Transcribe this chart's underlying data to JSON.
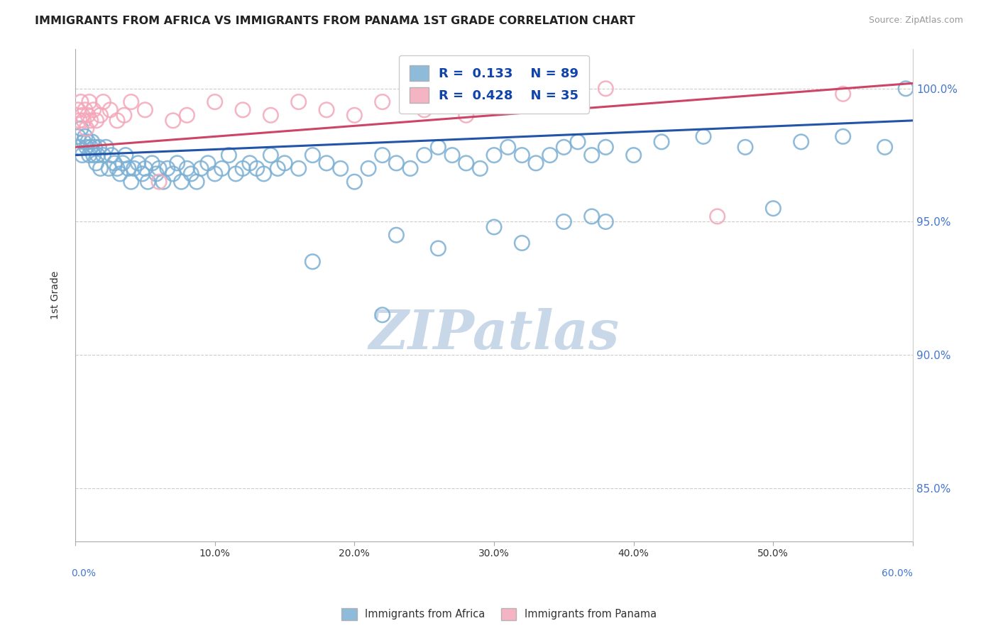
{
  "title": "IMMIGRANTS FROM AFRICA VS IMMIGRANTS FROM PANAMA 1ST GRADE CORRELATION CHART",
  "source": "Source: ZipAtlas.com",
  "ylabel": "1st Grade",
  "legend_label_blue": "Immigrants from Africa",
  "legend_label_pink": "Immigrants from Panama",
  "R_blue": 0.133,
  "N_blue": 89,
  "R_pink": 0.428,
  "N_pink": 35,
  "x_min": 0.0,
  "x_max": 60.0,
  "y_min": 83.0,
  "y_max": 101.5,
  "yticks": [
    85.0,
    90.0,
    95.0,
    100.0
  ],
  "ytick_labels": [
    "85.0%",
    "90.0%",
    "95.0%",
    "100.0%"
  ],
  "xticks": [
    0.0,
    10.0,
    20.0,
    30.0,
    40.0,
    50.0,
    60.0
  ],
  "xtick_labels": [
    "0.0%",
    "10.0%",
    "20.0%",
    "30.0%",
    "40.0%",
    "50.0%",
    "60.0%"
  ],
  "blue_color": "#7bafd4",
  "pink_color": "#f4a7b9",
  "blue_line_color": "#2255aa",
  "pink_line_color": "#cc4466",
  "watermark_color": "#c8d8e8",
  "blue_points_x": [
    0.2,
    0.3,
    0.4,
    0.5,
    0.6,
    0.7,
    0.8,
    0.9,
    1.0,
    1.1,
    1.2,
    1.3,
    1.4,
    1.5,
    1.6,
    1.7,
    1.8,
    2.0,
    2.2,
    2.4,
    2.6,
    2.8,
    3.0,
    3.2,
    3.4,
    3.6,
    3.8,
    4.0,
    4.2,
    4.5,
    4.8,
    5.0,
    5.2,
    5.5,
    5.8,
    6.0,
    6.3,
    6.6,
    7.0,
    7.3,
    7.6,
    8.0,
    8.3,
    8.7,
    9.0,
    9.5,
    10.0,
    10.5,
    11.0,
    11.5,
    12.0,
    12.5,
    13.0,
    13.5,
    14.0,
    14.5,
    15.0,
    16.0,
    17.0,
    18.0,
    19.0,
    20.0,
    21.0,
    22.0,
    23.0,
    24.0,
    25.0,
    26.0,
    27.0,
    28.0,
    29.0,
    30.0,
    31.0,
    32.0,
    33.0,
    34.0,
    35.0,
    36.0,
    37.0,
    38.0,
    40.0,
    42.0,
    45.0,
    48.0,
    50.0,
    52.0,
    55.0,
    58.0,
    59.5
  ],
  "blue_points_y": [
    98.2,
    97.8,
    98.5,
    97.5,
    98.0,
    98.2,
    97.8,
    98.0,
    97.5,
    97.8,
    98.0,
    97.5,
    97.8,
    97.2,
    97.5,
    97.8,
    97.0,
    97.5,
    97.8,
    97.0,
    97.5,
    97.2,
    97.0,
    96.8,
    97.2,
    97.5,
    97.0,
    96.5,
    97.0,
    97.2,
    96.8,
    97.0,
    96.5,
    97.2,
    96.8,
    97.0,
    96.5,
    97.0,
    96.8,
    97.2,
    96.5,
    97.0,
    96.8,
    96.5,
    97.0,
    97.2,
    96.8,
    97.0,
    97.5,
    96.8,
    97.0,
    97.2,
    97.0,
    96.8,
    97.5,
    97.0,
    97.2,
    97.0,
    97.5,
    97.2,
    97.0,
    96.5,
    97.0,
    97.5,
    97.2,
    97.0,
    97.5,
    97.8,
    97.5,
    97.2,
    97.0,
    97.5,
    97.8,
    97.5,
    97.2,
    97.5,
    97.8,
    98.0,
    97.5,
    97.8,
    97.5,
    98.0,
    98.2,
    97.8,
    95.5,
    98.0,
    98.2,
    97.8,
    100.0
  ],
  "blue_outlier_x": [
    17.0,
    23.0,
    26.0,
    30.0,
    32.0,
    35.0,
    37.0,
    38.0,
    22.0
  ],
  "blue_outlier_y": [
    93.5,
    94.5,
    94.0,
    94.8,
    94.2,
    95.0,
    95.2,
    95.0,
    91.5
  ],
  "pink_points_x": [
    0.2,
    0.3,
    0.4,
    0.5,
    0.6,
    0.7,
    0.8,
    0.9,
    1.0,
    1.1,
    1.3,
    1.5,
    1.8,
    2.0,
    2.5,
    3.0,
    3.5,
    4.0,
    5.0,
    6.0,
    7.0,
    8.0,
    10.0,
    12.0,
    14.0,
    16.0,
    18.0,
    20.0,
    22.0,
    25.0,
    28.0,
    32.0,
    38.0,
    46.0,
    55.0
  ],
  "pink_points_y": [
    99.2,
    98.8,
    99.5,
    99.0,
    98.8,
    99.2,
    98.5,
    99.0,
    99.5,
    98.8,
    99.2,
    98.8,
    99.0,
    99.5,
    99.2,
    98.8,
    99.0,
    99.5,
    99.2,
    96.5,
    98.8,
    99.0,
    99.5,
    99.2,
    99.0,
    99.5,
    99.2,
    99.0,
    99.5,
    99.2,
    99.0,
    99.5,
    100.0,
    95.2,
    99.8
  ],
  "blue_line_x0": 0.0,
  "blue_line_x1": 60.0,
  "blue_line_y0": 97.5,
  "blue_line_y1": 98.8,
  "pink_line_x0": 0.0,
  "pink_line_x1": 60.0,
  "pink_line_y0": 97.8,
  "pink_line_y1": 100.2
}
